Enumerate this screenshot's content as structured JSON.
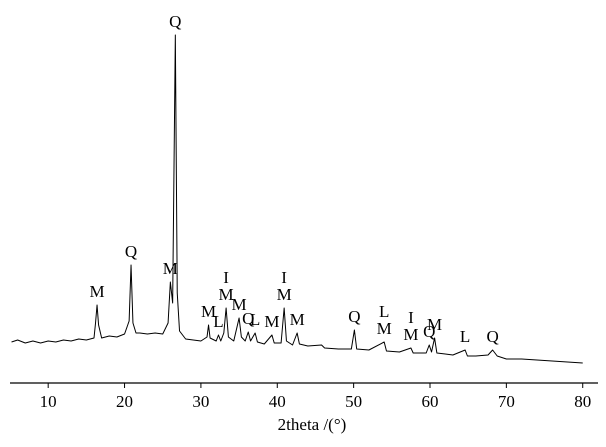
{
  "chart_data": {
    "type": "line",
    "xlabel": "2theta /(°)",
    "xlim": [
      5,
      82
    ],
    "xticks": [
      10,
      20,
      30,
      40,
      50,
      60,
      70,
      80
    ],
    "ylim": [
      0,
      350
    ],
    "series": [
      {
        "color": "#000000",
        "x": [
          5.2,
          6,
          7,
          8,
          9,
          10,
          11,
          12,
          13,
          14,
          15,
          16,
          16.2,
          16.4,
          16.6,
          17,
          18,
          19,
          20,
          20.6,
          20.85,
          21.1,
          21.5,
          22,
          23,
          24,
          25,
          25.7,
          26.0,
          26.3,
          26.65,
          26.9,
          27.2,
          28,
          29,
          30,
          30.8,
          31,
          31.2,
          32,
          32.3,
          32.6,
          33.0,
          33.3,
          33.6,
          34.3,
          35.0,
          35.3,
          35.8,
          36.2,
          36.5,
          37.1,
          37.4,
          38.3,
          39.3,
          39.6,
          40.5,
          40.9,
          41.2,
          42,
          42.6,
          42.9,
          44,
          45.8,
          46.2,
          48,
          49.7,
          50.1,
          50.4,
          52,
          54.0,
          54.3,
          56,
          57.5,
          57.8,
          59.5,
          59.9,
          60.2,
          60.6,
          60.9,
          62,
          63,
          64.6,
          64.9,
          66,
          67.6,
          68.2,
          68.8,
          70,
          72,
          74,
          76,
          78,
          80
        ],
        "values": [
          41,
          43,
          40,
          42,
          40,
          42,
          41,
          43,
          42,
          44,
          43,
          45,
          60,
          78,
          58,
          45,
          47,
          46,
          49,
          62,
          118,
          60,
          50,
          50,
          49,
          50,
          49,
          60,
          101,
          80,
          348,
          90,
          52,
          44,
          43,
          42,
          46,
          58,
          45,
          42,
          48,
          42,
          50,
          75,
          46,
          42,
          65,
          46,
          42,
          51,
          42,
          50,
          41,
          39,
          48,
          40,
          40,
          75,
          42,
          38,
          50,
          39,
          37,
          38,
          35,
          34,
          34,
          53,
          34,
          33,
          41,
          32,
          31,
          35,
          30,
          30,
          38,
          31,
          45,
          30,
          29,
          28,
          33,
          27,
          27,
          28,
          33,
          27,
          24,
          24,
          23,
          22,
          21,
          20
        ]
      }
    ],
    "annotations": [
      {
        "text": "M",
        "x": 16.4
      },
      {
        "text": "Q",
        "x": 20.85
      },
      {
        "text": "M",
        "x": 26.0
      },
      {
        "text": "Q",
        "x": 26.65
      },
      {
        "text": "M",
        "x": 31
      },
      {
        "text": "L",
        "x": 32.3
      },
      {
        "text": "M",
        "x": 33.3
      },
      {
        "text": "I",
        "x": 33.3
      },
      {
        "text": "M",
        "x": 35.0
      },
      {
        "text": "Q",
        "x": 36.2
      },
      {
        "text": "L",
        "x": 37.1
      },
      {
        "text": "M",
        "x": 39.3
      },
      {
        "text": "M",
        "x": 40.9
      },
      {
        "text": "I",
        "x": 40.9
      },
      {
        "text": "M",
        "x": 42.6
      },
      {
        "text": "Q",
        "x": 50.1
      },
      {
        "text": "M",
        "x": 54.0
      },
      {
        "text": "L",
        "x": 54.0
      },
      {
        "text": "M",
        "x": 57.5
      },
      {
        "text": "I",
        "x": 57.5
      },
      {
        "text": "Q",
        "x": 59.9
      },
      {
        "text": "M",
        "x": 60.6
      },
      {
        "text": "L",
        "x": 64.6
      },
      {
        "text": "Q",
        "x": 68.2
      }
    ]
  }
}
